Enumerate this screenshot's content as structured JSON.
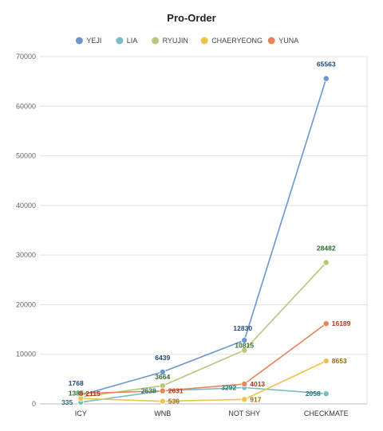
{
  "chart_data": {
    "type": "line",
    "title": "Pro-Order",
    "categories": [
      "ICY",
      "WNB",
      "NOT SHY",
      "CHECKMATE"
    ],
    "ylim": [
      0,
      70000
    ],
    "yticks": [
      0,
      10000,
      20000,
      30000,
      40000,
      50000,
      60000,
      70000
    ],
    "grid": true,
    "legend_position": "top",
    "series": [
      {
        "name": "YEJI",
        "color": "#6c96d0",
        "label_color": "#234a7a",
        "values": [
          1768,
          6439,
          12830,
          65563
        ]
      },
      {
        "name": "LIA",
        "color": "#76bec3",
        "label_color": "#2b6f76",
        "values": [
          335,
          2638,
          3292,
          2058
        ]
      },
      {
        "name": "RYUJIN",
        "color": "#b6c77a",
        "label_color": "#2f6a2f",
        "values": [
          1385,
          3664,
          10815,
          28482
        ]
      },
      {
        "name": "CHAERYEONG",
        "color": "#f0c24a",
        "label_color": "#9a6a10",
        "values": [
          1100,
          536,
          917,
          8653
        ]
      },
      {
        "name": "YUNA",
        "color": "#e9835a",
        "label_color": "#b03a1a",
        "values": [
          2115,
          2631,
          4013,
          16189
        ]
      }
    ]
  }
}
